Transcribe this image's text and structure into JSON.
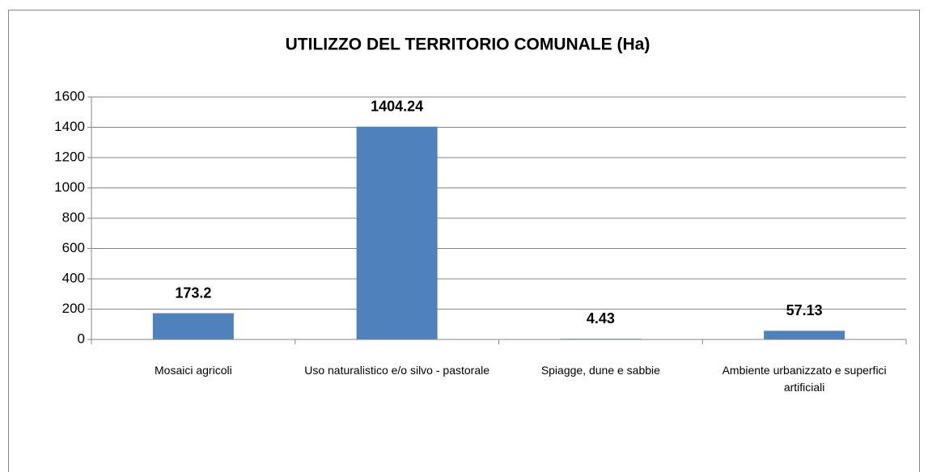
{
  "chart_data": {
    "type": "bar",
    "title": "UTILIZZO DEL TERRITORIO COMUNALE (Ha)",
    "categories": [
      "Mosaici agricoli",
      "Uso naturalistico e/o silvo - pastorale",
      "Spiagge, dune e sabbie",
      "Ambiente urbanizzato e superfici artificiali"
    ],
    "values": [
      173.2,
      1404.24,
      4.43,
      57.13
    ],
    "color": "#4f81bd",
    "ylim": [
      0,
      1600
    ],
    "yticks": [
      0,
      200,
      400,
      600,
      800,
      1000,
      1200,
      1400,
      1600
    ],
    "grid": true
  }
}
